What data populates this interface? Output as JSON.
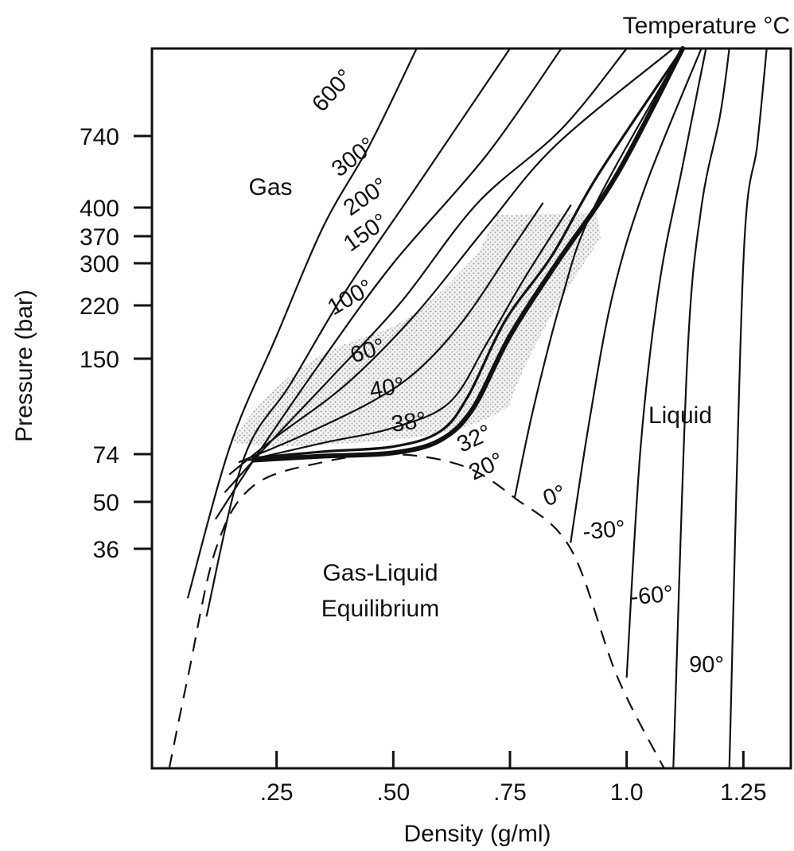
{
  "chart_data": {
    "type": "line",
    "title": "Temperature °C",
    "xlabel": "Density (g/ml)",
    "ylabel": "Pressure (bar)",
    "xlim": [
      0.0,
      1.35
    ],
    "y_scale": "nonlinear (tick labels unevenly spaced)",
    "grid": false,
    "x_ticks": [
      {
        "value": 0.25,
        "label": ".25"
      },
      {
        "value": 0.5,
        "label": ".50"
      },
      {
        "value": 0.75,
        "label": ".75"
      },
      {
        "value": 1.0,
        "label": "1.0"
      },
      {
        "value": 1.25,
        "label": "1.25"
      }
    ],
    "y_ticks": [
      {
        "value": 740,
        "label": "740"
      },
      {
        "value": 400,
        "label": "400"
      },
      {
        "value": 370,
        "label": "370"
      },
      {
        "value": 300,
        "label": "300"
      },
      {
        "value": 220,
        "label": "220"
      },
      {
        "value": 150,
        "label": "150"
      },
      {
        "value": 74,
        "label": "74"
      },
      {
        "value": 50,
        "label": "50"
      },
      {
        "value": 36,
        "label": "36"
      }
    ],
    "regions": [
      {
        "label": "Gas"
      },
      {
        "label": "Liquid"
      },
      {
        "label": "Gas-Liquid Equilibrium",
        "lines": [
          "Gas-Liquid",
          "Equilibrium"
        ]
      }
    ],
    "isotherms": [
      {
        "temperature": "600°",
        "points": [
          [
            0.06,
            28
          ],
          [
            0.15,
            80
          ],
          [
            0.25,
            180
          ],
          [
            0.35,
            380
          ],
          [
            0.45,
            700
          ],
          [
            0.55,
            1000
          ]
        ]
      },
      {
        "temperature": "300°",
        "points": [
          [
            0.1,
            25
          ],
          [
            0.18,
            72
          ],
          [
            0.28,
            130
          ],
          [
            0.4,
            250
          ],
          [
            0.55,
            500
          ],
          [
            0.75,
            1000
          ]
        ]
      },
      {
        "temperature": "200°",
        "points": [
          [
            0.12,
            45
          ],
          [
            0.22,
            80
          ],
          [
            0.35,
            150
          ],
          [
            0.5,
            300
          ],
          [
            0.7,
            650
          ],
          [
            0.86,
            1000
          ]
        ]
      },
      {
        "temperature": "150°",
        "points": [
          [
            0.14,
            55
          ],
          [
            0.24,
            85
          ],
          [
            0.38,
            140
          ],
          [
            0.52,
            230
          ],
          [
            0.68,
            420
          ],
          [
            0.86,
            760
          ],
          [
            1.0,
            1000
          ]
        ]
      },
      {
        "temperature": "100°",
        "points": [
          [
            0.15,
            64
          ],
          [
            0.25,
            88
          ],
          [
            0.4,
            130
          ],
          [
            0.55,
            210
          ],
          [
            0.7,
            380
          ],
          [
            0.85,
            700
          ],
          [
            1.1,
            1000
          ]
        ]
      },
      {
        "temperature": "60°",
        "points": [
          [
            0.17,
            70
          ],
          [
            0.3,
            88
          ],
          [
            0.45,
            115
          ],
          [
            0.55,
            140
          ],
          [
            0.65,
            200
          ],
          [
            0.75,
            330
          ],
          [
            0.82,
            420
          ]
        ]
      },
      {
        "temperature": "40°",
        "points": [
          [
            0.19,
            71
          ],
          [
            0.35,
            83
          ],
          [
            0.5,
            95
          ],
          [
            0.62,
            115
          ],
          [
            0.7,
            170
          ],
          [
            0.78,
            270
          ],
          [
            0.88,
            410
          ]
        ]
      },
      {
        "temperature": "38°",
        "points": [
          [
            0.2,
            72
          ],
          [
            0.35,
            76
          ],
          [
            0.5,
            80
          ],
          [
            0.6,
            92
          ],
          [
            0.66,
            120
          ],
          [
            0.74,
            200
          ],
          [
            0.84,
            320
          ],
          [
            0.94,
            560
          ],
          [
            1.12,
            1000
          ]
        ]
      },
      {
        "temperature": "32°",
        "points": [
          [
            0.2,
            71
          ],
          [
            0.35,
            73
          ],
          [
            0.5,
            75
          ],
          [
            0.6,
            85
          ],
          [
            0.67,
            110
          ],
          [
            0.75,
            180
          ],
          [
            0.85,
            300
          ],
          [
            0.98,
            560
          ],
          [
            1.12,
            1000
          ]
        ]
      },
      {
        "temperature": "20°",
        "points": [
          [
            0.76,
            52
          ],
          [
            0.8,
            110
          ],
          [
            0.86,
            230
          ],
          [
            0.93,
            400
          ],
          [
            1.12,
            1000
          ]
        ]
      },
      {
        "temperature": "0°",
        "points": [
          [
            0.88,
            38
          ],
          [
            0.92,
            100
          ],
          [
            0.97,
            240
          ],
          [
            1.04,
            500
          ],
          [
            1.16,
            1000
          ]
        ]
      },
      {
        "temperature": "-30°",
        "points": [
          [
            1.0,
            15
          ],
          [
            1.03,
            80
          ],
          [
            1.07,
            260
          ],
          [
            1.12,
            600
          ],
          [
            1.17,
            1000
          ]
        ]
      },
      {
        "temperature": "-60°",
        "points": [
          [
            1.1,
            0
          ],
          [
            1.13,
            150
          ],
          [
            1.16,
            400
          ],
          [
            1.2,
            800
          ],
          [
            1.22,
            1000
          ]
        ]
      },
      {
        "temperature": "90°",
        "points": [
          [
            1.22,
            0
          ],
          [
            1.25,
            300
          ],
          [
            1.28,
            700
          ],
          [
            1.3,
            1000
          ]
        ]
      }
    ],
    "coexistence_curve": {
      "style": "dashed",
      "points": [
        [
          0.02,
          0
        ],
        [
          0.06,
          15
        ],
        [
          0.12,
          36
        ],
        [
          0.2,
          58
        ],
        [
          0.35,
          70
        ],
        [
          0.5,
          74
        ],
        [
          0.65,
          68
        ],
        [
          0.76,
          52
        ],
        [
          0.88,
          36
        ],
        [
          0.98,
          15
        ],
        [
          1.08,
          0
        ]
      ]
    },
    "shaded_region": {
      "description": "supercritical extraction region between the 40° and 60° isotherms, extending to 370 bar"
    }
  }
}
